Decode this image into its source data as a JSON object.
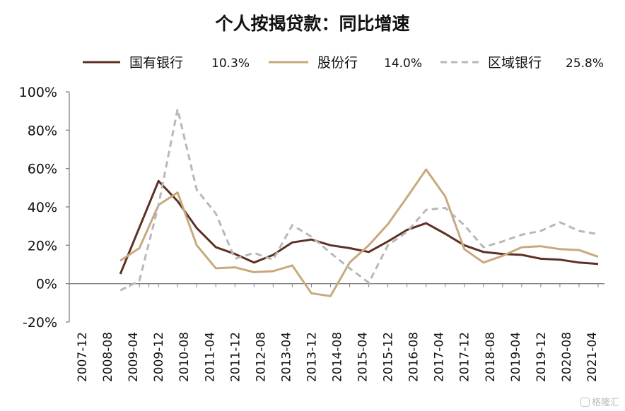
{
  "chart_data": {
    "type": "line",
    "title": "个人按揭贷款：同比增速",
    "xlabel": "",
    "ylabel": "",
    "ylim": [
      -20,
      100
    ],
    "yticks": [
      "100%",
      "80%",
      "60%",
      "40%",
      "20%",
      "0%",
      "-20%"
    ],
    "categories": [
      "2007-12",
      "2008-08",
      "2009-04",
      "2009-12",
      "2010-08",
      "2011-04",
      "2011-12",
      "2012-08",
      "2013-04",
      "2013-12",
      "2014-08",
      "2015-04",
      "2015-12",
      "2016-08",
      "2017-04",
      "2017-12",
      "2018-08",
      "2019-04",
      "2019-12",
      "2020-08",
      "2021-04"
    ],
    "x": [
      "2009-03",
      "2009-06",
      "2009-09",
      "2009-12",
      "2010-06",
      "2010-12",
      "2011-06",
      "2011-12",
      "2012-06",
      "2012-12",
      "2013-06",
      "2013-12",
      "2014-06",
      "2014-12",
      "2015-06",
      "2015-12",
      "2016-06",
      "2016-12",
      "2017-06",
      "2017-12",
      "2018-06",
      "2018-12",
      "2019-06",
      "2019-12",
      "2020-06",
      "2020-12",
      "2021-06"
    ],
    "grid": false,
    "legend_position": "top",
    "series": [
      {
        "name": "国有银行",
        "legend_value": "10.3%",
        "color": "#5e3024",
        "dash": "solid",
        "points": [
          [
            "2008-12",
            5
          ],
          [
            "2009-12",
            53.5
          ],
          [
            "2010-06",
            43
          ],
          [
            "2010-12",
            29
          ],
          [
            "2011-06",
            19
          ],
          [
            "2011-12",
            15.5
          ],
          [
            "2012-06",
            11
          ],
          [
            "2012-12",
            15
          ],
          [
            "2013-06",
            21.5
          ],
          [
            "2013-12",
            23
          ],
          [
            "2014-06",
            20
          ],
          [
            "2014-12",
            18.5
          ],
          [
            "2015-06",
            16.5
          ],
          [
            "2015-12",
            22
          ],
          [
            "2016-06",
            28
          ],
          [
            "2016-12",
            31.5
          ],
          [
            "2017-06",
            26
          ],
          [
            "2017-12",
            20
          ],
          [
            "2018-06",
            16.5
          ],
          [
            "2018-12",
            15.5
          ],
          [
            "2019-06",
            15
          ],
          [
            "2019-12",
            13
          ],
          [
            "2020-06",
            12.5
          ],
          [
            "2020-12",
            11
          ],
          [
            "2021-06",
            10.3
          ]
        ]
      },
      {
        "name": "股份行",
        "legend_value": "14.0%",
        "color": "#c8a97e",
        "dash": "solid",
        "points": [
          [
            "2008-12",
            12
          ],
          [
            "2009-06",
            18.5
          ],
          [
            "2009-12",
            41
          ],
          [
            "2010-06",
            47.5
          ],
          [
            "2010-12",
            20
          ],
          [
            "2011-06",
            8
          ],
          [
            "2011-12",
            8.5
          ],
          [
            "2012-06",
            6
          ],
          [
            "2012-12",
            6.5
          ],
          [
            "2013-06",
            9.5
          ],
          [
            "2013-12",
            -5
          ],
          [
            "2014-06",
            -6.5
          ],
          [
            "2014-12",
            11
          ],
          [
            "2015-06",
            20
          ],
          [
            "2015-12",
            31
          ],
          [
            "2016-06",
            45
          ],
          [
            "2016-12",
            59.5
          ],
          [
            "2017-06",
            45.5
          ],
          [
            "2017-12",
            18
          ],
          [
            "2018-06",
            11
          ],
          [
            "2018-12",
            14.5
          ],
          [
            "2019-06",
            19
          ],
          [
            "2019-12",
            19.5
          ],
          [
            "2020-06",
            18
          ],
          [
            "2020-12",
            17.5
          ],
          [
            "2021-06",
            14
          ]
        ]
      },
      {
        "name": "区域银行",
        "legend_value": "25.8%",
        "color": "#b8b8b8",
        "dash": "dashed",
        "points": [
          [
            "2008-12",
            -3.5
          ],
          [
            "2009-06",
            1.5
          ],
          [
            "2009-12",
            41
          ],
          [
            "2010-06",
            91
          ],
          [
            "2010-12",
            49
          ],
          [
            "2011-06",
            36.5
          ],
          [
            "2011-12",
            13
          ],
          [
            "2012-06",
            16
          ],
          [
            "2012-12",
            12.5
          ],
          [
            "2013-06",
            30.5
          ],
          [
            "2013-12",
            24.5
          ],
          [
            "2014-06",
            16
          ],
          [
            "2014-12",
            8
          ],
          [
            "2015-06",
            0.5
          ],
          [
            "2015-12",
            20
          ],
          [
            "2016-06",
            27
          ],
          [
            "2016-12",
            38.5
          ],
          [
            "2017-06",
            39.5
          ],
          [
            "2017-12",
            30.5
          ],
          [
            "2018-06",
            19
          ],
          [
            "2018-12",
            22
          ],
          [
            "2019-06",
            25.5
          ],
          [
            "2019-12",
            27.5
          ],
          [
            "2020-06",
            32
          ],
          [
            "2020-12",
            27.5
          ],
          [
            "2021-06",
            25.8
          ]
        ]
      }
    ]
  },
  "watermark": {
    "text": "格隆汇",
    "icon": "logo-icon"
  }
}
